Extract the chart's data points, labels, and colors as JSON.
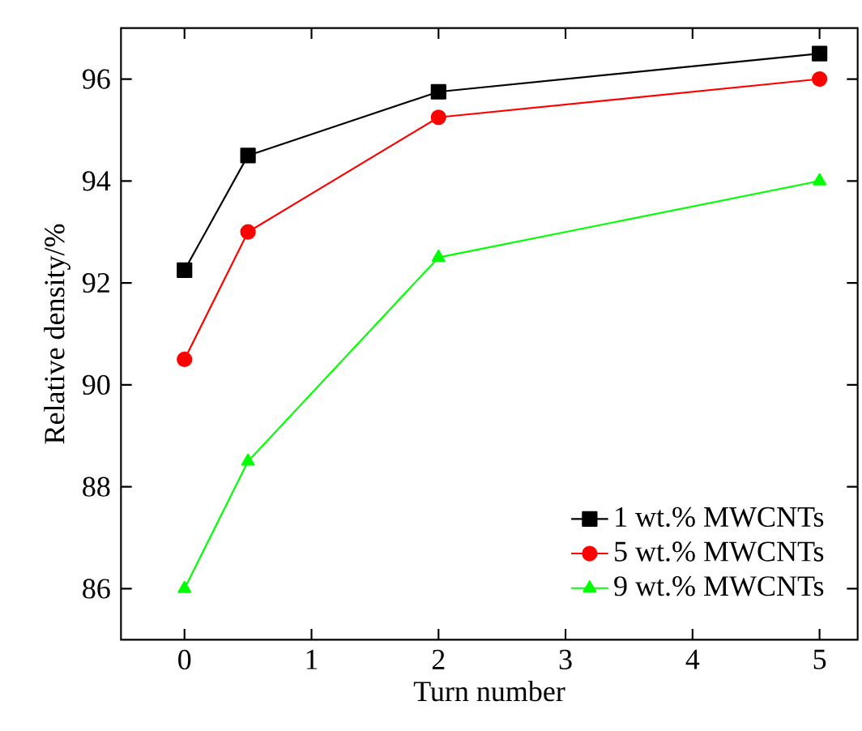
{
  "chart_data": {
    "type": "line",
    "xlabel": "Turn number",
    "ylabel": "Relative density/%",
    "xlim": [
      -0.5,
      5.3
    ],
    "ylim": [
      85,
      97
    ],
    "xticks": [
      0,
      1,
      2,
      3,
      4,
      5
    ],
    "yticks": [
      86,
      88,
      90,
      92,
      94,
      96
    ],
    "grid": false,
    "legend": "bottom right",
    "line_style": "solid",
    "series": [
      {
        "name": "1 wt.% MWCNTs",
        "color": "#000000",
        "marker": "square",
        "x": [
          0,
          0.5,
          2,
          5
        ],
        "values": [
          92.25,
          94.5,
          95.75,
          96.5
        ]
      },
      {
        "name": "5 wt.% MWCNTs",
        "color": "#ff0000",
        "marker": "circle",
        "x": [
          0,
          0.5,
          2,
          5
        ],
        "values": [
          90.5,
          93,
          95.25,
          96
        ]
      },
      {
        "name": "9 wt.% MWCNTs",
        "color": "#00ff00",
        "marker": "triangle",
        "x": [
          0,
          0.5,
          2,
          5
        ],
        "values": [
          86,
          88.5,
          92.5,
          94
        ]
      }
    ]
  }
}
